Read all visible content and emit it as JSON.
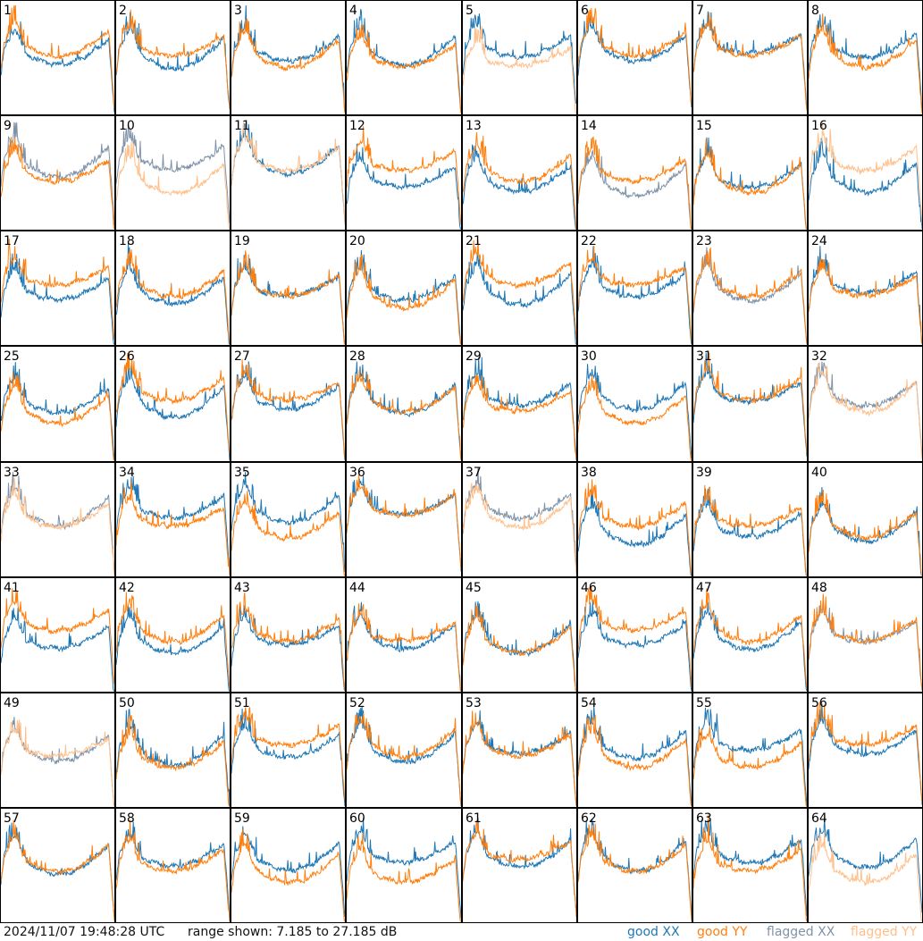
{
  "timestamp": "2024/11/07 19:48:28 UTC",
  "range_text": "range shown: 7.185 to 27.185 dB",
  "colors": {
    "good_xx": "#1f77b4",
    "good_yy": "#ff7f0e",
    "flagged_xx": "#7f93a8",
    "flagged_yy": "#ffbf8a"
  },
  "legend": {
    "good_xx": "good XX",
    "good_yy": "good YY",
    "flagged_xx": "flagged XX",
    "flagged_yy": "flagged YY"
  },
  "chart_data": {
    "type": "line",
    "grid": {
      "rows": 8,
      "cols": 8
    },
    "ylim": [
      7.185,
      27.185
    ],
    "panels": [
      {
        "id": "1",
        "xx": "good",
        "yy": "good"
      },
      {
        "id": "2",
        "xx": "good",
        "yy": "good"
      },
      {
        "id": "3",
        "xx": "good",
        "yy": "good"
      },
      {
        "id": "4",
        "xx": "good",
        "yy": "good"
      },
      {
        "id": "5",
        "xx": "good",
        "yy": "flagged"
      },
      {
        "id": "6",
        "xx": "good",
        "yy": "good"
      },
      {
        "id": "7",
        "xx": "good",
        "yy": "good"
      },
      {
        "id": "8",
        "xx": "good",
        "yy": "good"
      },
      {
        "id": "9",
        "xx": "flagged",
        "yy": "good"
      },
      {
        "id": "10",
        "xx": "flagged",
        "yy": "flagged"
      },
      {
        "id": "11",
        "xx": "good",
        "yy": "flagged"
      },
      {
        "id": "12",
        "xx": "good",
        "yy": "good"
      },
      {
        "id": "13",
        "xx": "good",
        "yy": "good"
      },
      {
        "id": "14",
        "xx": "flagged",
        "yy": "good"
      },
      {
        "id": "15",
        "xx": "good",
        "yy": "good"
      },
      {
        "id": "16",
        "xx": "good",
        "yy": "flagged"
      },
      {
        "id": "17",
        "xx": "good",
        "yy": "good"
      },
      {
        "id": "18",
        "xx": "good",
        "yy": "good"
      },
      {
        "id": "19",
        "xx": "good",
        "yy": "good"
      },
      {
        "id": "20",
        "xx": "good",
        "yy": "good"
      },
      {
        "id": "21",
        "xx": "good",
        "yy": "good"
      },
      {
        "id": "22",
        "xx": "good",
        "yy": "good"
      },
      {
        "id": "23",
        "xx": "flagged",
        "yy": "good"
      },
      {
        "id": "24",
        "xx": "good",
        "yy": "good"
      },
      {
        "id": "25",
        "xx": "good",
        "yy": "good"
      },
      {
        "id": "26",
        "xx": "good",
        "yy": "good"
      },
      {
        "id": "27",
        "xx": "good",
        "yy": "good"
      },
      {
        "id": "28",
        "xx": "good",
        "yy": "good"
      },
      {
        "id": "29",
        "xx": "good",
        "yy": "good"
      },
      {
        "id": "30",
        "xx": "good",
        "yy": "good"
      },
      {
        "id": "31",
        "xx": "good",
        "yy": "good"
      },
      {
        "id": "32",
        "xx": "flagged",
        "yy": "flagged"
      },
      {
        "id": "33",
        "xx": "flagged",
        "yy": "flagged"
      },
      {
        "id": "34",
        "xx": "good",
        "yy": "good"
      },
      {
        "id": "35",
        "xx": "good",
        "yy": "good"
      },
      {
        "id": "36",
        "xx": "good",
        "yy": "good"
      },
      {
        "id": "37",
        "xx": "flagged",
        "yy": "flagged"
      },
      {
        "id": "38",
        "xx": "good",
        "yy": "good"
      },
      {
        "id": "39",
        "xx": "good",
        "yy": "good"
      },
      {
        "id": "40",
        "xx": "good",
        "yy": "good"
      },
      {
        "id": "41",
        "xx": "good",
        "yy": "good"
      },
      {
        "id": "42",
        "xx": "good",
        "yy": "good"
      },
      {
        "id": "43",
        "xx": "good",
        "yy": "good"
      },
      {
        "id": "44",
        "xx": "good",
        "yy": "good"
      },
      {
        "id": "45",
        "xx": "good",
        "yy": "good"
      },
      {
        "id": "46",
        "xx": "good",
        "yy": "good"
      },
      {
        "id": "47",
        "xx": "good",
        "yy": "good"
      },
      {
        "id": "48",
        "xx": "flagged",
        "yy": "good"
      },
      {
        "id": "49",
        "xx": "flagged",
        "yy": "flagged"
      },
      {
        "id": "50",
        "xx": "good",
        "yy": "good"
      },
      {
        "id": "51",
        "xx": "good",
        "yy": "good"
      },
      {
        "id": "52",
        "xx": "good",
        "yy": "good"
      },
      {
        "id": "53",
        "xx": "good",
        "yy": "good"
      },
      {
        "id": "54",
        "xx": "good",
        "yy": "good"
      },
      {
        "id": "55",
        "xx": "good",
        "yy": "good"
      },
      {
        "id": "56",
        "xx": "good",
        "yy": "good"
      },
      {
        "id": "57",
        "xx": "good",
        "yy": "good"
      },
      {
        "id": "58",
        "xx": "good",
        "yy": "good"
      },
      {
        "id": "59",
        "xx": "good",
        "yy": "good"
      },
      {
        "id": "60",
        "xx": "good",
        "yy": "good"
      },
      {
        "id": "61",
        "xx": "good",
        "yy": "good"
      },
      {
        "id": "62",
        "xx": "good",
        "yy": "good"
      },
      {
        "id": "63",
        "xx": "good",
        "yy": "good"
      },
      {
        "id": "64",
        "xx": "good",
        "yy": "flagged"
      }
    ]
  }
}
